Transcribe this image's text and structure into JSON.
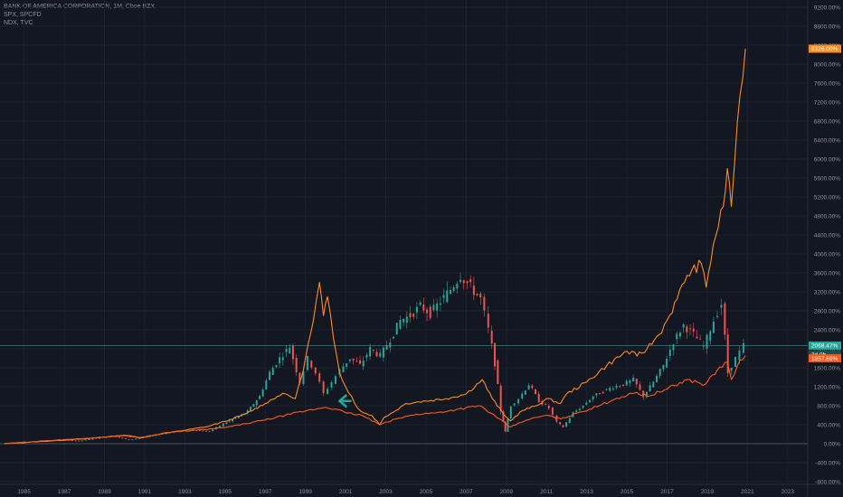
{
  "legend": {
    "line1": "BANK OF AMERICA CORPORATION, 1M, Cboe BZX",
    "line2": "SPX, SPCFD",
    "line3": "NDX, TVC"
  },
  "colors": {
    "background": "#131722",
    "grid": "#1c2030",
    "axis_text": "#8a8f9c",
    "bac_up": "#26a69a",
    "bac_down": "#ef5350",
    "ndx": "#ff8a1e",
    "spx": "#ff5a1a",
    "price_line": "#26a69a",
    "zero_line": "#4a4f5c",
    "arrow": "#26a69a"
  },
  "chart_data": {
    "type": "line",
    "y_unit": "%",
    "ylim": [
      -800,
      9200
    ],
    "xlim": [
      1983.8,
      2024.0
    ],
    "y_ticks": [
      "9200.00%",
      "8800.00%",
      "8400.00%",
      "8000.00%",
      "7600.00%",
      "7200.00%",
      "6800.00%",
      "6400.00%",
      "6000.00%",
      "5600.00%",
      "5200.00%",
      "4800.00%",
      "4400.00%",
      "4000.00%",
      "3600.00%",
      "3200.00%",
      "2800.00%",
      "2400.00%",
      "2000.00%",
      "1600.00%",
      "1200.00%",
      "800.00%",
      "400.00%",
      "0.00%",
      "-400.00%",
      "-800.00%"
    ],
    "y_tick_values": [
      9200,
      8800,
      8400,
      8000,
      7600,
      7200,
      6800,
      6400,
      6000,
      5600,
      5200,
      4800,
      4400,
      4000,
      3600,
      3200,
      2800,
      2400,
      2000,
      1600,
      1200,
      800,
      400,
      0,
      -400,
      -800
    ],
    "x_ticks": [
      "1985",
      "1987",
      "1989",
      "1991",
      "1993",
      "1995",
      "1997",
      "1999",
      "2001",
      "2003",
      "2005",
      "2007",
      "2009",
      "2011",
      "2013",
      "2015",
      "2017",
      "2019",
      "2021",
      "2023"
    ],
    "x_tick_values": [
      1985,
      1987,
      1989,
      1991,
      1993,
      1995,
      1997,
      1999,
      2001,
      2003,
      2005,
      2007,
      2009,
      2011,
      2013,
      2015,
      2017,
      2019,
      2021,
      2023
    ],
    "badges": {
      "ndx": "8326.00%",
      "bac": "2068.47%",
      "countdown": "3d 0h",
      "spx": "1857.69%"
    },
    "bac_value": 2068.47,
    "arrow_point": [
      2000.7,
      900
    ],
    "series": [
      {
        "key": "ndx",
        "x": [
          1984.0,
          1986.0,
          1988.0,
          1990.0,
          1990.8,
          1992.0,
          1994.0,
          1995.0,
          1996.0,
          1997.0,
          1997.6,
          1998.0,
          1998.5,
          1998.8,
          1999.0,
          1999.4,
          1999.7,
          1999.9,
          2000.1,
          2000.4,
          2000.7,
          2001.0,
          2001.3,
          2001.6,
          2001.9,
          2002.3,
          2002.7,
          2002.9,
          2003.5,
          2004.0,
          2005.0,
          2006.0,
          2007.0,
          2007.8,
          2008.3,
          2008.9,
          2009.2,
          2009.8,
          2010.5,
          2011.0,
          2011.7,
          2012.0,
          2013.0,
          2014.0,
          2015.0,
          2015.5,
          2016.0,
          2016.6,
          2017.0,
          2017.5,
          2018.0,
          2018.7,
          2018.95,
          2019.3,
          2019.8,
          2020.0,
          2020.2,
          2020.5,
          2020.9
        ],
        "values": [
          0,
          50,
          100,
          180,
          130,
          220,
          350,
          470,
          620,
          850,
          1000,
          1050,
          950,
          1400,
          1800,
          2600,
          3400,
          2700,
          3100,
          2200,
          1500,
          1200,
          1000,
          750,
          650,
          600,
          400,
          550,
          700,
          850,
          900,
          950,
          1050,
          1350,
          950,
          600,
          480,
          700,
          800,
          950,
          850,
          1050,
          1300,
          1650,
          1950,
          1850,
          2000,
          2300,
          2600,
          3050,
          3550,
          3800,
          3300,
          4200,
          5000,
          5800,
          5000,
          6800,
          8326
        ]
      },
      {
        "key": "spx",
        "x": [
          1984.0,
          1986.0,
          1988.0,
          1990.0,
          1990.8,
          1992.0,
          1994.0,
          1995.0,
          1996.0,
          1997.0,
          1998.0,
          1999.0,
          2000.0,
          2000.6,
          2001.0,
          2001.8,
          2002.7,
          2003.5,
          2004.5,
          2005.5,
          2006.5,
          2007.7,
          2008.5,
          2009.2,
          2010.0,
          2011.0,
          2011.7,
          2012.5,
          2013.5,
          2014.5,
          2015.5,
          2016.0,
          2017.0,
          2018.0,
          2018.9,
          2019.5,
          2020.0,
          2020.2,
          2020.5,
          2020.9
        ],
        "values": [
          0,
          60,
          110,
          170,
          120,
          230,
          300,
          340,
          420,
          500,
          600,
          690,
          770,
          720,
          650,
          600,
          400,
          520,
          620,
          650,
          720,
          800,
          560,
          350,
          500,
          600,
          520,
          640,
          780,
          960,
          1080,
          1000,
          1150,
          1350,
          1250,
          1550,
          1720,
          1350,
          1650,
          1857.69
        ]
      }
    ],
    "bac_candles": [
      [
        1984.0,
        0,
        10
      ],
      [
        1985.0,
        10,
        25
      ],
      [
        1986.0,
        25,
        60
      ],
      [
        1987.0,
        60,
        90
      ],
      [
        1987.8,
        90,
        55
      ],
      [
        1988.5,
        55,
        110
      ],
      [
        1989.5,
        110,
        160
      ],
      [
        1990.3,
        160,
        80
      ],
      [
        1991.0,
        80,
        130
      ],
      [
        1991.8,
        130,
        200
      ],
      [
        1992.5,
        200,
        250
      ],
      [
        1993.5,
        250,
        290
      ],
      [
        1994.3,
        290,
        260
      ],
      [
        1995.0,
        260,
        420
      ],
      [
        1995.6,
        420,
        540
      ],
      [
        1996.2,
        540,
        680
      ],
      [
        1996.8,
        680,
        1000
      ],
      [
        1997.3,
        1000,
        1500
      ],
      [
        1997.8,
        1500,
        1800
      ],
      [
        1998.3,
        1800,
        2050
      ],
      [
        1998.8,
        2050,
        1300
      ],
      [
        1999.2,
        1300,
        1800
      ],
      [
        1999.6,
        1800,
        1500
      ],
      [
        2000.0,
        1500,
        1050
      ],
      [
        2000.4,
        1050,
        1300
      ],
      [
        2000.8,
        1300,
        1550
      ],
      [
        2001.3,
        1550,
        1800
      ],
      [
        2001.8,
        1800,
        1650
      ],
      [
        2002.3,
        1650,
        2000
      ],
      [
        2002.8,
        2000,
        1850
      ],
      [
        2003.3,
        1850,
        2200
      ],
      [
        2003.8,
        2200,
        2600
      ],
      [
        2004.3,
        2600,
        2700
      ],
      [
        2004.8,
        2700,
        2900
      ],
      [
        2005.3,
        2900,
        2750
      ],
      [
        2005.8,
        2750,
        3000
      ],
      [
        2006.3,
        3000,
        3250
      ],
      [
        2006.8,
        3250,
        3550
      ],
      [
        2007.3,
        3550,
        3300
      ],
      [
        2007.8,
        3300,
        3050
      ],
      [
        2008.2,
        3050,
        2400
      ],
      [
        2008.5,
        2400,
        1700
      ],
      [
        2008.8,
        1700,
        700
      ],
      [
        2009.0,
        700,
        250
      ],
      [
        2009.3,
        250,
        800
      ],
      [
        2009.7,
        800,
        950
      ],
      [
        2010.2,
        950,
        1250
      ],
      [
        2010.7,
        1250,
        900
      ],
      [
        2011.2,
        900,
        750
      ],
      [
        2011.6,
        750,
        450
      ],
      [
        2011.9,
        450,
        350
      ],
      [
        2012.4,
        350,
        650
      ],
      [
        2012.9,
        650,
        800
      ],
      [
        2013.4,
        800,
        1000
      ],
      [
        2013.9,
        1000,
        1100
      ],
      [
        2014.4,
        1100,
        1200
      ],
      [
        2014.9,
        1200,
        1250
      ],
      [
        2015.4,
        1250,
        1350
      ],
      [
        2015.9,
        1350,
        1000
      ],
      [
        2016.4,
        1000,
        1300
      ],
      [
        2016.9,
        1300,
        1650
      ],
      [
        2017.4,
        1650,
        2150
      ],
      [
        2017.9,
        2150,
        2500
      ],
      [
        2018.4,
        2500,
        2300
      ],
      [
        2018.9,
        2300,
        2050
      ],
      [
        2019.4,
        2050,
        2600
      ],
      [
        2019.8,
        2600,
        2950
      ],
      [
        2020.1,
        2950,
        1500
      ],
      [
        2020.5,
        1500,
        1800
      ],
      [
        2020.9,
        1800,
        2068
      ]
    ]
  }
}
